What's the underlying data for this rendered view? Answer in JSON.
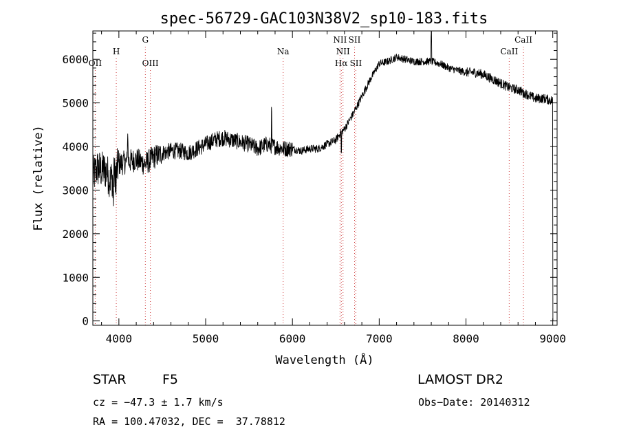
{
  "chart_data": {
    "type": "line",
    "title": "spec-56729-GAC103N38V2_sp10-183.fits",
    "xlabel": "Wavelength (Å)",
    "ylabel": "Flux (relative)",
    "xlim": [
      3700,
      9050
    ],
    "ylim": [
      -100,
      6650
    ],
    "xticks": [
      4000,
      5000,
      6000,
      7000,
      8000,
      9000
    ],
    "yticks": [
      0,
      1000,
      2000,
      3000,
      4000,
      5000,
      6000
    ],
    "grid": false,
    "line_color": "#000000",
    "marker_color": "#cc3333",
    "spectrum_anchors": [
      [
        3700,
        3300
      ],
      [
        3750,
        3500
      ],
      [
        3800,
        3450
      ],
      [
        3850,
        3450
      ],
      [
        3900,
        3250
      ],
      [
        3950,
        3350
      ],
      [
        4000,
        3600
      ],
      [
        4100,
        3650
      ],
      [
        4200,
        3700
      ],
      [
        4300,
        3600
      ],
      [
        4400,
        3750
      ],
      [
        4500,
        3850
      ],
      [
        4600,
        3900
      ],
      [
        4700,
        3900
      ],
      [
        4800,
        3850
      ],
      [
        4900,
        3950
      ],
      [
        5000,
        4050
      ],
      [
        5100,
        4150
      ],
      [
        5200,
        4200
      ],
      [
        5300,
        4150
      ],
      [
        5400,
        4100
      ],
      [
        5500,
        4050
      ],
      [
        5600,
        3950
      ],
      [
        5700,
        4050
      ],
      [
        5800,
        4000
      ],
      [
        5900,
        3950
      ],
      [
        6000,
        3950
      ],
      [
        6100,
        3900
      ],
      [
        6200,
        3950
      ],
      [
        6300,
        3950
      ],
      [
        6400,
        4050
      ],
      [
        6500,
        4150
      ],
      [
        6550,
        4300
      ],
      [
        6600,
        4400
      ],
      [
        6700,
        4750
      ],
      [
        6800,
        5150
      ],
      [
        6900,
        5550
      ],
      [
        7000,
        5900
      ],
      [
        7100,
        5950
      ],
      [
        7200,
        6050
      ],
      [
        7300,
        6000
      ],
      [
        7400,
        5950
      ],
      [
        7500,
        5950
      ],
      [
        7600,
        5950
      ],
      [
        7700,
        5900
      ],
      [
        7800,
        5800
      ],
      [
        7900,
        5750
      ],
      [
        8000,
        5700
      ],
      [
        8100,
        5700
      ],
      [
        8200,
        5650
      ],
      [
        8300,
        5550
      ],
      [
        8400,
        5450
      ],
      [
        8500,
        5350
      ],
      [
        8600,
        5300
      ],
      [
        8700,
        5200
      ],
      [
        8800,
        5100
      ],
      [
        8900,
        5100
      ],
      [
        9000,
        5050
      ]
    ],
    "spectral_features": [
      {
        "wavelength": 8662,
        "dy": -42,
        "dx": 0
      },
      {
        "wavelength": 8542,
        "dy": -10,
        "dx": 0
      },
      {
        "wavelength": 8498,
        "dy": 0,
        "dx": 0
      },
      {
        "wavelength": 7600,
        "dy": 620,
        "dx": 0
      },
      {
        "wavelength": 6563,
        "dy": -480,
        "dx": 0
      },
      {
        "wavelength": 4861,
        "dy": 0,
        "dx": 0
      },
      {
        "wavelength": 4340,
        "dy": -120,
        "dx": 0
      },
      {
        "wavelength": 4102,
        "dy": 600,
        "dx": 0
      },
      {
        "wavelength": 3968,
        "dy": -450,
        "dx": 0
      },
      {
        "wavelength": 3934,
        "dy": -500,
        "dx": 0
      },
      {
        "wavelength": 5893,
        "dy": 0,
        "dx": 0
      },
      {
        "wavelength": 5178,
        "dy": 0,
        "dx": 0
      },
      {
        "wavelength": 5760,
        "dy": 700,
        "dx": 0
      }
    ],
    "line_markers": [
      {
        "label": "OII",
        "wavelength": 3727,
        "row": "low"
      },
      {
        "label": "H",
        "wavelength": 3970,
        "row": "mid"
      },
      {
        "label": "G",
        "wavelength": 4305,
        "row": "top"
      },
      {
        "label": "OIII",
        "wavelength": 4363,
        "row": "low"
      },
      {
        "label": "Na",
        "wavelength": 5893,
        "row": "mid"
      },
      {
        "label": "NII",
        "wavelength": 6548,
        "row": "top"
      },
      {
        "label": "NII",
        "wavelength": 6583,
        "row": "mid"
      },
      {
        "label": "Hα",
        "wavelength": 6563,
        "row": "low"
      },
      {
        "label": "SII",
        "wavelength": 6716,
        "row": "top"
      },
      {
        "label": "SII",
        "wavelength": 6731,
        "row": "low"
      },
      {
        "label": "CaII",
        "wavelength": 8498,
        "row": "mid"
      },
      {
        "label": "CaII",
        "wavelength": 8662,
        "row": "top"
      }
    ]
  },
  "footer": {
    "object_class": "STAR",
    "subclass": "F5",
    "survey": "LAMOST DR2",
    "redshift": "cz = −47.3 ± 1.7 km/s",
    "obs_date": "Obs−Date: 20140312",
    "coords": "RA = 100.47032, DEC =  37.78812"
  }
}
